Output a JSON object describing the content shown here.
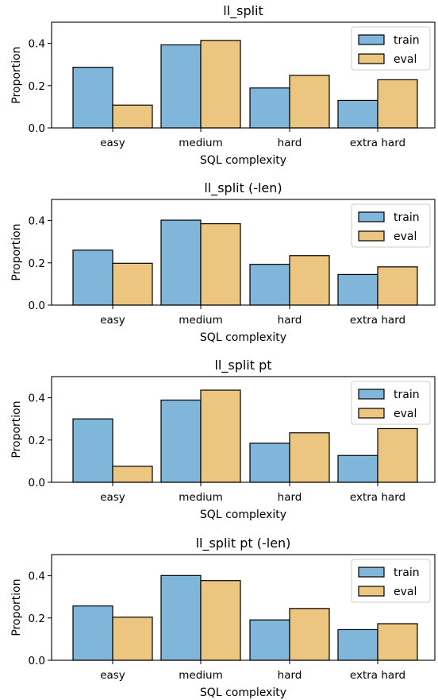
{
  "colors": {
    "train": "#7fb6da",
    "eval": "#ecc681",
    "edge": "#000000"
  },
  "chart_data": [
    {
      "type": "bar",
      "title": "ll_split",
      "xlabel": "SQL complexity",
      "ylabel": "Proportion",
      "categories": [
        "easy",
        "medium",
        "hard",
        "extra hard"
      ],
      "yticks": [
        "0.0",
        "0.2",
        "0.4"
      ],
      "ylim": [
        0,
        0.5
      ],
      "legend": "top-right",
      "series": [
        {
          "name": "train",
          "values": [
            0.287,
            0.393,
            0.189,
            0.13
          ]
        },
        {
          "name": "eval",
          "values": [
            0.108,
            0.414,
            0.249,
            0.228
          ]
        }
      ]
    },
    {
      "type": "bar",
      "title": "ll_split (-len)",
      "xlabel": "SQL complexity",
      "ylabel": "Proportion",
      "categories": [
        "easy",
        "medium",
        "hard",
        "extra hard"
      ],
      "yticks": [
        "0.0",
        "0.2",
        "0.4"
      ],
      "ylim": [
        0,
        0.5
      ],
      "legend": "top-right",
      "series": [
        {
          "name": "train",
          "values": [
            0.26,
            0.402,
            0.193,
            0.145
          ]
        },
        {
          "name": "eval",
          "values": [
            0.198,
            0.385,
            0.234,
            0.181
          ]
        }
      ]
    },
    {
      "type": "bar",
      "title": "ll_split pt",
      "xlabel": "SQL complexity",
      "ylabel": "Proportion",
      "categories": [
        "easy",
        "medium",
        "hard",
        "extra hard"
      ],
      "yticks": [
        "0.0",
        "0.2",
        "0.4"
      ],
      "ylim": [
        0,
        0.5
      ],
      "legend": "top-right",
      "series": [
        {
          "name": "train",
          "values": [
            0.3,
            0.389,
            0.185,
            0.127
          ]
        },
        {
          "name": "eval",
          "values": [
            0.076,
            0.436,
            0.234,
            0.254
          ]
        }
      ]
    },
    {
      "type": "bar",
      "title": "ll_split pt (-len)",
      "xlabel": "SQL complexity",
      "ylabel": "Proportion",
      "categories": [
        "easy",
        "medium",
        "hard",
        "extra hard"
      ],
      "yticks": [
        "0.0",
        "0.2",
        "0.4"
      ],
      "ylim": [
        0,
        0.5
      ],
      "legend": "top-right",
      "series": [
        {
          "name": "train",
          "values": [
            0.257,
            0.401,
            0.191,
            0.145
          ]
        },
        {
          "name": "eval",
          "values": [
            0.204,
            0.377,
            0.245,
            0.173
          ]
        }
      ]
    }
  ]
}
